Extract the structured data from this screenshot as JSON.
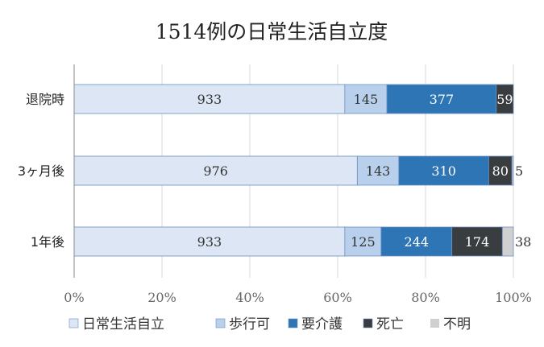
{
  "chart_data": {
    "type": "bar",
    "orientation": "horizontal",
    "stacked": "percent",
    "title": "1514例の日常生活自立度",
    "categories": [
      "退院時",
      "3ヶ月後",
      "1年後"
    ],
    "series": [
      {
        "name": "日常生活自立",
        "values": [
          933,
          976,
          933
        ],
        "color": "#dce6f4",
        "label_color": "#333333"
      },
      {
        "name": "歩行可",
        "values": [
          145,
          143,
          125
        ],
        "color": "#b9d0ec",
        "label_color": "#333333"
      },
      {
        "name": "要介護",
        "values": [
          377,
          310,
          244
        ],
        "color": "#2e75b6",
        "label_color": "#ffffff"
      },
      {
        "name": "死亡",
        "values": [
          59,
          80,
          174
        ],
        "color": "#3a3d40",
        "label_color": "#ffffff"
      },
      {
        "name": "不明",
        "values": [
          0,
          5,
          38
        ],
        "color": "#d0d0d0",
        "label_color": "#333333"
      }
    ],
    "data_labels": [
      [
        "933",
        "145",
        "377",
        "59",
        ""
      ],
      [
        "976",
        "143",
        "310",
        "80",
        "5"
      ],
      [
        "933",
        "125",
        "244",
        "174",
        "38"
      ]
    ],
    "x_ticks": [
      "0%",
      "20%",
      "40%",
      "60%",
      "80%",
      "100%"
    ],
    "xlim": [
      0,
      100
    ],
    "grid": true,
    "legend_position": "bottom"
  }
}
